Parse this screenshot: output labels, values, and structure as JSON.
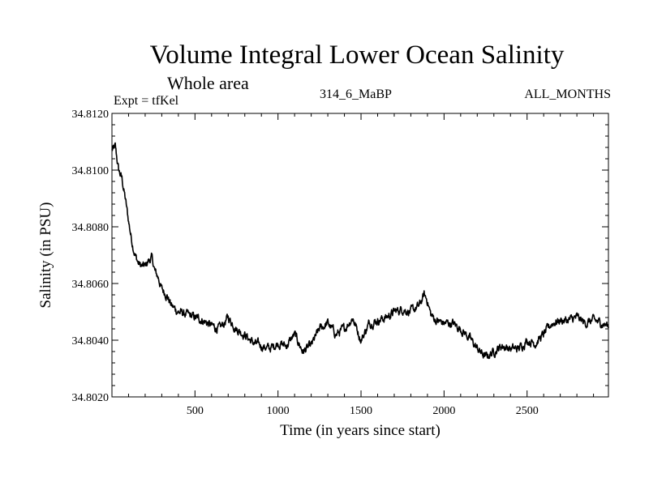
{
  "chart_data": {
    "type": "line",
    "title": "Volume Integral Lower Ocean Salinity",
    "subtitle": "Whole area",
    "header_left": "Expt = tfKel",
    "header_center": "314_6_MaBP",
    "header_right": "ALL_MONTHS",
    "xlabel": "Time (in years since start)",
    "ylabel": "Salinity (in PSU)",
    "xlim": [
      0,
      2990
    ],
    "ylim": [
      34.802,
      34.812
    ],
    "xticks": [
      500,
      1000,
      1500,
      2000,
      2500
    ],
    "xtick_labels": [
      "500",
      "1000",
      "1500",
      "2000",
      "2500"
    ],
    "yticks": [
      34.802,
      34.804,
      34.806,
      34.808,
      34.81,
      34.812
    ],
    "ytick_labels": [
      "34.8020",
      "34.8040",
      "34.8060",
      "34.8080",
      "34.8100",
      "34.8120"
    ],
    "grid": false,
    "legend": "none",
    "series": [
      {
        "color": "#000000",
        "x": [
          0,
          20,
          40,
          60,
          80,
          100,
          120,
          140,
          160,
          180,
          200,
          220,
          240,
          260,
          280,
          300,
          330,
          360,
          400,
          450,
          500,
          550,
          600,
          650,
          700,
          750,
          800,
          850,
          900,
          950,
          1000,
          1050,
          1100,
          1150,
          1200,
          1250,
          1300,
          1350,
          1400,
          1450,
          1500,
          1550,
          1600,
          1650,
          1700,
          1750,
          1800,
          1850,
          1880,
          1900,
          1920,
          1950,
          2000,
          2050,
          2100,
          2150,
          2200,
          2250,
          2300,
          2350,
          2400,
          2450,
          2500,
          2550,
          2600,
          2650,
          2700,
          2750,
          2800,
          2850,
          2900,
          2950,
          2990
        ],
        "y": [
          34.8107,
          34.8108,
          34.81,
          34.8097,
          34.809,
          34.8082,
          34.8075,
          34.807,
          34.8067,
          34.8066,
          34.8066,
          34.8068,
          34.8069,
          34.8064,
          34.8062,
          34.8058,
          34.8056,
          34.8052,
          34.805,
          34.8049,
          34.8048,
          34.8047,
          34.8045,
          34.8044,
          34.8048,
          34.8044,
          34.8042,
          34.8039,
          34.8038,
          34.8037,
          34.8039,
          34.8038,
          34.8042,
          34.8036,
          34.8038,
          34.8044,
          34.8046,
          34.8042,
          34.8044,
          34.8048,
          34.804,
          34.8046,
          34.8047,
          34.8048,
          34.805,
          34.8051,
          34.805,
          34.8052,
          34.8056,
          34.8054,
          34.8049,
          34.8047,
          34.8046,
          34.8046,
          34.8044,
          34.8041,
          34.8037,
          34.8034,
          34.8036,
          34.8038,
          34.8037,
          34.8037,
          34.804,
          34.8039,
          34.8042,
          34.8046,
          34.8047,
          34.8047,
          34.8048,
          34.8046,
          34.8047,
          34.8046,
          34.8045
        ]
      }
    ]
  }
}
